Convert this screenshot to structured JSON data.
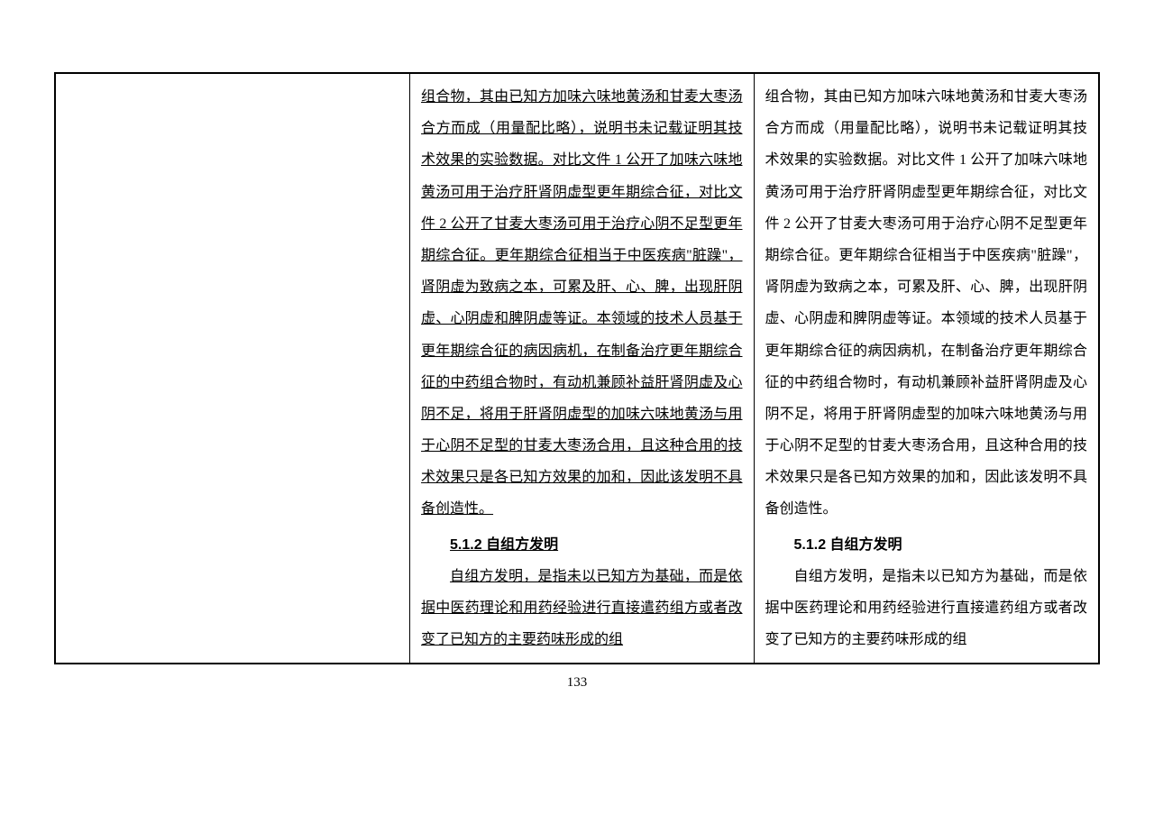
{
  "col2": {
    "para1": "组合物，其由已知方加味六味地黄汤和甘麦大枣汤合方而成（用量配比略），说明书未记载证明其技术效果的实验数据。对比文件 1 公开了加味六味地黄汤可用于治疗肝肾阴虚型更年期综合征，对比文件 2 公开了甘麦大枣汤可用于治疗心阴不足型更年期综合征。更年期综合征相当于中医疾病\"脏躁\"，肾阴虚为致病之本，可累及肝、心、脾，出现肝阴虚、心阴虚和脾阴虚等证。本领域的技术人员基于更年期综合征的病因病机，在制备治疗更年期综合征的中药组合物时，有动机兼顾补益肝肾阴虚及心阴不足，将用于肝肾阴虚型的加味六味地黄汤与用于心阴不足型的甘麦大枣汤合用，且这种合用的技术效果只是各已知方效果的加和，因此该发明不具备创造性。",
    "section_title": "5.1.2 自组方发明",
    "para2": "自组方发明，是指未以已知方为基础，而是依据中医药理论和用药经验进行直接遣药组方或者改变了已知方的主要药味形成的组"
  },
  "col3": {
    "para1": "组合物，其由已知方加味六味地黄汤和甘麦大枣汤合方而成（用量配比略），说明书未记载证明其技术效果的实验数据。对比文件 1 公开了加味六味地黄汤可用于治疗肝肾阴虚型更年期综合征，对比文件 2 公开了甘麦大枣汤可用于治疗心阴不足型更年期综合征。更年期综合征相当于中医疾病\"脏躁\"，肾阴虚为致病之本，可累及肝、心、脾，出现肝阴虚、心阴虚和脾阴虚等证。本领域的技术人员基于更年期综合征的病因病机，在制备治疗更年期综合征的中药组合物时，有动机兼顾补益肝肾阴虚及心阴不足，将用于肝肾阴虚型的加味六味地黄汤与用于心阴不足型的甘麦大枣汤合用，且这种合用的技术效果只是各已知方效果的加和，因此该发明不具备创造性。",
    "section_title": "5.1.2 自组方发明",
    "para2": "自组方发明，是指未以已知方为基础，而是依据中医药理论和用药经验进行直接遣药组方或者改变了已知方的主要药味形成的组"
  },
  "page_number": "133"
}
